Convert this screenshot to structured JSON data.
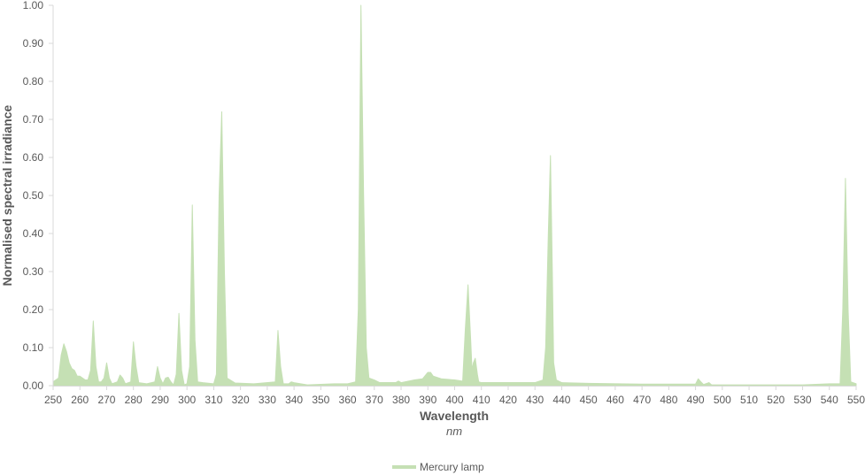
{
  "chart_data": {
    "type": "area",
    "title": "",
    "xlabel": "Wavelength",
    "xunit": "nm",
    "ylabel": "Normalised spectral irradiance",
    "xlim": [
      250,
      550
    ],
    "ylim": [
      0,
      1.0
    ],
    "grid": false,
    "legend_position": "bottom",
    "x_ticks": [
      "250",
      "260",
      "270",
      "280",
      "290",
      "300",
      "310",
      "320",
      "330",
      "340",
      "350",
      "360",
      "370",
      "380",
      "390",
      "400",
      "410",
      "420",
      "430",
      "440",
      "450",
      "460",
      "470",
      "480",
      "490",
      "500",
      "510",
      "520",
      "530",
      "540",
      "550"
    ],
    "y_ticks": [
      "0.00",
      "0.10",
      "0.20",
      "0.30",
      "0.40",
      "0.50",
      "0.60",
      "0.70",
      "0.80",
      "0.90",
      "1.00"
    ],
    "series": [
      {
        "name": "Mercury lamp",
        "color": "#c5e0b4",
        "x": [
          250,
          252,
          253,
          254,
          255,
          256,
          257,
          258,
          259,
          260,
          262,
          263,
          264,
          265,
          266,
          267,
          268,
          269,
          270,
          271,
          272,
          274,
          275,
          276,
          277,
          279,
          280,
          281,
          282,
          285,
          288,
          289,
          290,
          291,
          292,
          293,
          294,
          295,
          296,
          297,
          298,
          299,
          300,
          301,
          302,
          303,
          304,
          306,
          310,
          311,
          312,
          313,
          314,
          315,
          318,
          325,
          333,
          334,
          335,
          336,
          338,
          339,
          340,
          345,
          355,
          360,
          363,
          364,
          365,
          366,
          367,
          368,
          370,
          372,
          378,
          379,
          380,
          385,
          388,
          390,
          391,
          392,
          395,
          400,
          403,
          404,
          405,
          406,
          406.5,
          407,
          407.7,
          408.5,
          409,
          410,
          420,
          430,
          433,
          434,
          435,
          435.8,
          436.5,
          437,
          438,
          440,
          450,
          470,
          490,
          491,
          492,
          493,
          495,
          496,
          530,
          540,
          544,
          545,
          546,
          547,
          548,
          550
        ],
        "y": [
          0.01,
          0.02,
          0.08,
          0.11,
          0.09,
          0.06,
          0.045,
          0.04,
          0.025,
          0.025,
          0.015,
          0.015,
          0.04,
          0.17,
          0.05,
          0.01,
          0.01,
          0.02,
          0.06,
          0.02,
          0.005,
          0.01,
          0.028,
          0.02,
          0.005,
          0.01,
          0.115,
          0.05,
          0.008,
          0.005,
          0.01,
          0.05,
          0.02,
          0.005,
          0.02,
          0.022,
          0.01,
          0.002,
          0.03,
          0.19,
          0.04,
          0.002,
          0.005,
          0.05,
          0.475,
          0.12,
          0.01,
          0.008,
          0.005,
          0.03,
          0.5,
          0.72,
          0.3,
          0.02,
          0.007,
          0.005,
          0.01,
          0.145,
          0.05,
          0.005,
          0.005,
          0.01,
          0.008,
          0.002,
          0.005,
          0.005,
          0.01,
          0.2,
          1.0,
          0.5,
          0.1,
          0.02,
          0.015,
          0.008,
          0.008,
          0.012,
          0.008,
          0.015,
          0.018,
          0.035,
          0.035,
          0.025,
          0.018,
          0.015,
          0.012,
          0.15,
          0.265,
          0.12,
          0.04,
          0.06,
          0.072,
          0.03,
          0.01,
          0.008,
          0.008,
          0.008,
          0.015,
          0.1,
          0.4,
          0.605,
          0.3,
          0.06,
          0.015,
          0.008,
          0.006,
          0.004,
          0.004,
          0.018,
          0.01,
          0.003,
          0.008,
          0.002,
          0.002,
          0.005,
          0.005,
          0.2,
          0.545,
          0.2,
          0.01,
          0.005
        ]
      }
    ]
  }
}
